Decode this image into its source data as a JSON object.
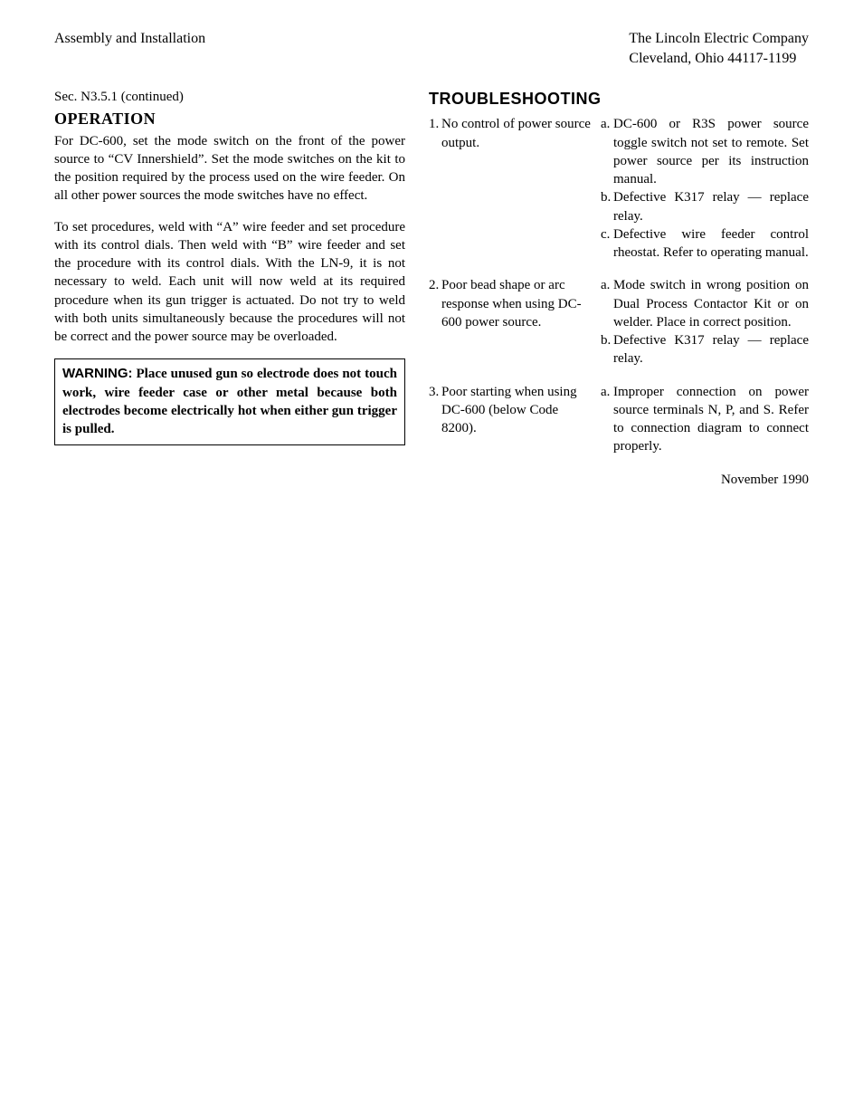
{
  "header": {
    "left": "Assembly and Installation",
    "right_line1": "The Lincoln Electric Company",
    "right_line2": "Cleveland, Ohio 44117-1199"
  },
  "left": {
    "sec_line": "Sec. N3.5.1 (continued)",
    "heading": "OPERATION",
    "para1": "For DC-600, set the mode switch on the front of the power source to “CV Innershield”. Set the mode switches on the kit to the position required by the process used on the wire feeder. On all other power sources the mode switches have no effect.",
    "para2": "To set procedures, weld with “A” wire feeder and set procedure with its control dials. Then weld with “B” wire feeder and set the procedure with its control dials. With the LN-9, it is not necessary to weld. Each unit will now weld at its required procedure when its gun trigger is actuated. Do not try to weld with both units simultaneously because the procedures will not be correct and the power source may be overloaded.",
    "warning_label": "WARNING:",
    "warning_text": " Place unused gun so electrode does not touch work, wire feeder case or other metal because both electrodes become electrically hot when either gun trigger is pulled."
  },
  "right": {
    "heading": "TROUBLESHOOTING",
    "items": [
      {
        "num": "1.",
        "problem": "No control of power source output.",
        "causes": [
          {
            "let": "a.",
            "text": "DC-600 or R3S power source toggle switch not set to remote. Set power source per its instruction manual."
          },
          {
            "let": "b.",
            "text": "Defective K317 relay — replace relay."
          },
          {
            "let": "c.",
            "text": "Defective wire feeder control rheostat. Refer to operating manual."
          }
        ]
      },
      {
        "num": "2.",
        "problem": "Poor bead shape or arc response when using DC-600 power source.",
        "causes": [
          {
            "let": "a.",
            "text": "Mode switch in wrong position on Dual Process Contactor Kit or on welder. Place in correct position."
          },
          {
            "let": "b.",
            "text": "Defective K317 relay — replace relay."
          }
        ]
      },
      {
        "num": "3.",
        "problem": "Poor starting when using DC-600 (below Code 8200).",
        "causes": [
          {
            "let": "a.",
            "text": "Improper connection on power source terminals N, P, and S. Refer to connection diagram to connect properly."
          }
        ]
      }
    ],
    "date": "November 1990"
  },
  "style": {
    "text_color": "#000000",
    "background_color": "#ffffff",
    "body_font_size": 15,
    "heading_font_size": 18
  }
}
